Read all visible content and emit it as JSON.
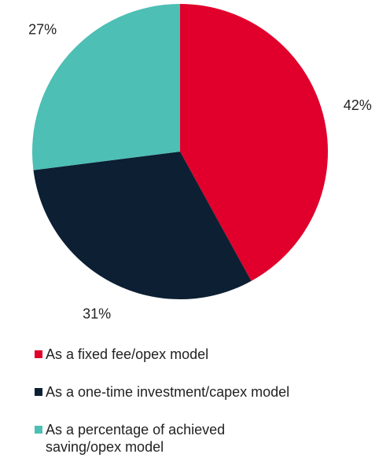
{
  "chart_data": {
    "type": "pie",
    "categories": [
      "As a fixed fee/opex model",
      "As a one-time investment/capex model",
      "As a percentage of achieved saving/opex model"
    ],
    "values": [
      42,
      31,
      27
    ],
    "value_labels": [
      "42%",
      "31%",
      "27%"
    ],
    "colors": [
      "#e0002b",
      "#0c1f33",
      "#4dbfb5"
    ],
    "legend": "bottom"
  }
}
